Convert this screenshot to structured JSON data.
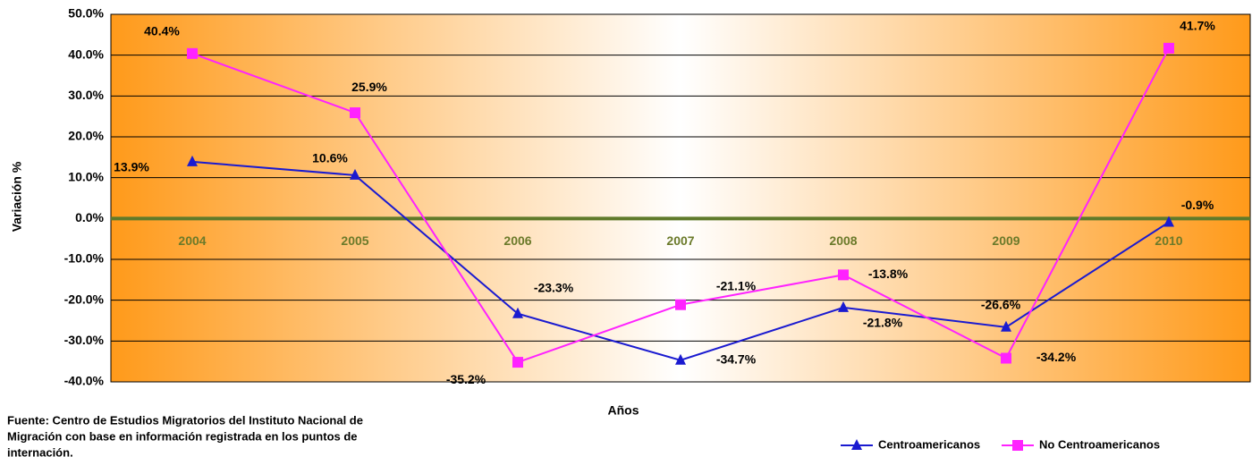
{
  "chart_data": {
    "type": "line",
    "categories": [
      "2004",
      "2005",
      "2006",
      "2007",
      "2008",
      "2009",
      "2010"
    ],
    "series": [
      {
        "name": "Centroamericanos",
        "color": "#1a1ad0",
        "marker": "triangle",
        "values": [
          13.9,
          10.6,
          -23.3,
          -34.7,
          -21.8,
          -26.6,
          -0.9
        ],
        "value_labels": [
          "13.9%",
          "10.6%",
          "-23.3%",
          "-34.7%",
          "-21.8%",
          "-26.6%",
          "-0.9%"
        ]
      },
      {
        "name": "No Centroamericanos",
        "color": "#ff22ff",
        "marker": "square",
        "values": [
          40.4,
          25.9,
          -35.2,
          -21.1,
          -13.8,
          -34.2,
          41.7
        ],
        "value_labels": [
          "40.4%",
          "25.9%",
          "-35.2%",
          "-21.1%",
          "-13.8%",
          "-34.2%",
          "41.7%"
        ]
      }
    ],
    "ylim": [
      -40,
      50
    ],
    "yticks": [
      {
        "value": -40,
        "label": "-40.0%"
      },
      {
        "value": -30,
        "label": "-30.0%"
      },
      {
        "value": -20,
        "label": "-20.0%"
      },
      {
        "value": -10,
        "label": "-10.0%"
      },
      {
        "value": 0,
        "label": "0.0%"
      },
      {
        "value": 10,
        "label": "10.0%"
      },
      {
        "value": 20,
        "label": "20.0%"
      },
      {
        "value": 30,
        "label": "30.0%"
      },
      {
        "value": 40,
        "label": "40.0%"
      },
      {
        "value": 50,
        "label": "50.0%"
      }
    ],
    "y_label": "Variación %",
    "x_label": "Años",
    "grid": true,
    "legend": "bottom-right",
    "source": [
      "Fuente: Centro de Estudios Migratorios del Instituto Nacional de",
      "Migración con base en información registrada en los puntos de",
      "internación."
    ]
  }
}
